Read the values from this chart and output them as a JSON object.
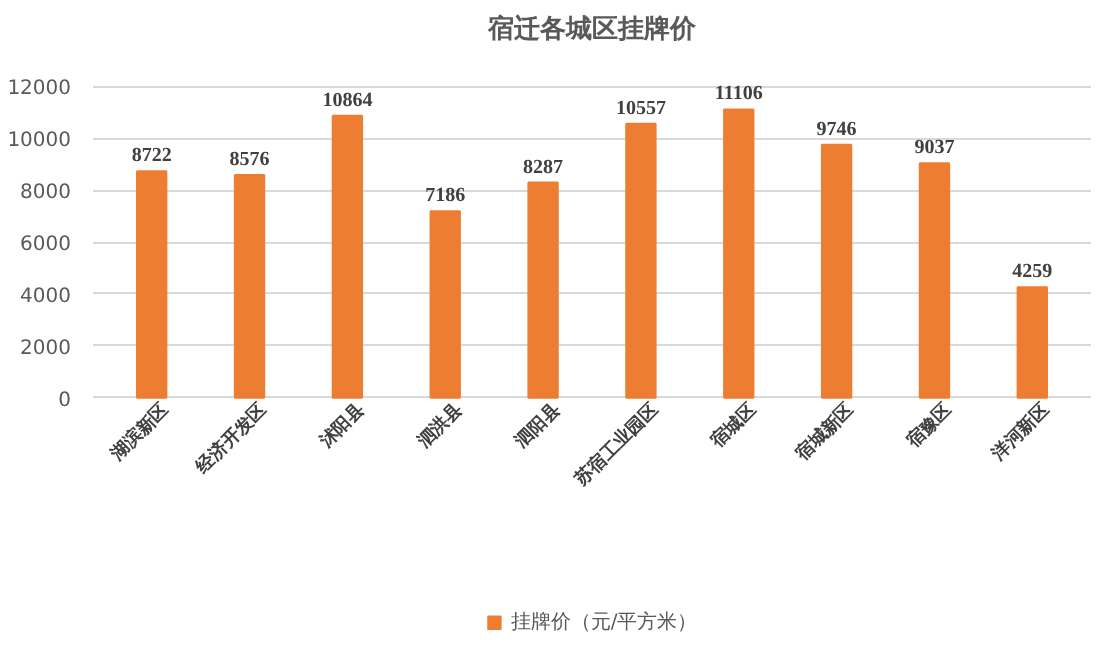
{
  "chart_data": {
    "type": "bar",
    "title": "宿迁各城区挂牌价",
    "categories": [
      "湖滨新区",
      "经济开发区",
      "沭阳县",
      "泗洪县",
      "泗阳县",
      "苏宿工业园区",
      "宿城区",
      "宿城新区",
      "宿豫区",
      "洋河新区"
    ],
    "series": [
      {
        "name": "挂牌价（元/平方米）",
        "color": "#ed7d31",
        "values": [
          8722,
          8576,
          10864,
          7186,
          8287,
          10557,
          11106,
          9746,
          9037,
          4259
        ]
      }
    ],
    "ylim": [
      0,
      12000
    ],
    "yticks": [
      0,
      2000,
      4000,
      6000,
      8000,
      10000,
      12000
    ],
    "grid": "y",
    "legend": "bottom",
    "data_labels": true
  }
}
